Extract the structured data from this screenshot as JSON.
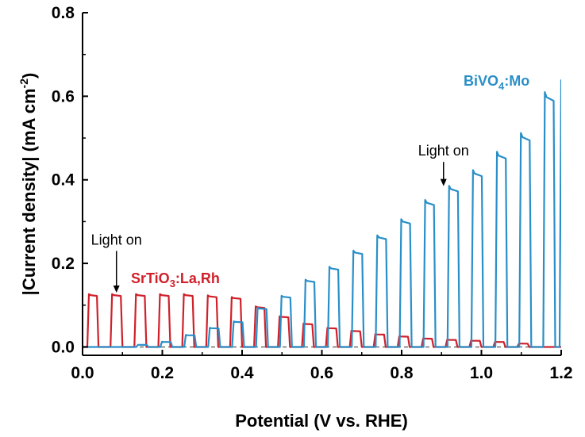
{
  "chart_data": {
    "type": "line",
    "title": "",
    "xlabel": "Potential (V vs. RHE)",
    "ylabel": "|Current density| (mA cm-2)",
    "ylabel_parts": {
      "main": "|Current density| (mA cm",
      "sup": "-2",
      "close": ")"
    },
    "xlim": [
      0.0,
      1.2
    ],
    "ylim": [
      -0.02,
      0.8
    ],
    "xticks": [
      "0.0",
      "0.2",
      "0.4",
      "0.6",
      "0.8",
      "1.0",
      "1.2"
    ],
    "yticks": [
      "0.0",
      "0.2",
      "0.4",
      "0.6",
      "0.8"
    ],
    "grid": false,
    "legend": "none",
    "colors": {
      "BiVO4:Mo": "#2a8fc8",
      "SrTiO3:La,Rh": "#d0202a",
      "axis": "#000000",
      "baseline": "#555555"
    },
    "series": [
      {
        "name": "SrTiO3:La,Rh",
        "label_parts": {
          "a": "SrTiO",
          "sub": "3",
          "b": ":La,Rh"
        },
        "dark_current": 0.0,
        "light_periods": [
          [
            0.012,
            0.04
          ],
          [
            0.07,
            0.1
          ],
          [
            0.13,
            0.16
          ],
          [
            0.19,
            0.22
          ],
          [
            0.25,
            0.28
          ],
          [
            0.31,
            0.34
          ],
          [
            0.37,
            0.4
          ],
          [
            0.43,
            0.46
          ],
          [
            0.49,
            0.52
          ],
          [
            0.55,
            0.58
          ],
          [
            0.61,
            0.64
          ],
          [
            0.67,
            0.7
          ],
          [
            0.73,
            0.76
          ],
          [
            0.79,
            0.82
          ],
          [
            0.85,
            0.88
          ],
          [
            0.91,
            0.94
          ],
          [
            0.97,
            1.0
          ],
          [
            1.03,
            1.06
          ],
          [
            1.09,
            1.12
          ]
        ],
        "light_values": [
          0.124,
          0.124,
          0.124,
          0.124,
          0.124,
          0.121,
          0.117,
          0.095,
          0.072,
          0.055,
          0.045,
          0.038,
          0.03,
          0.025,
          0.02,
          0.017,
          0.015,
          0.012,
          0.008
        ]
      },
      {
        "name": "BiVO4:Mo",
        "label_parts": {
          "a": "BiVO",
          "sub": "4",
          "b": ":Mo"
        },
        "dark_current": 0.0,
        "light_periods": [
          [
            0.135,
            0.165
          ],
          [
            0.195,
            0.225
          ],
          [
            0.255,
            0.285
          ],
          [
            0.315,
            0.345
          ],
          [
            0.375,
            0.405
          ],
          [
            0.435,
            0.465
          ],
          [
            0.495,
            0.525
          ],
          [
            0.555,
            0.585
          ],
          [
            0.615,
            0.645
          ],
          [
            0.675,
            0.705
          ],
          [
            0.735,
            0.765
          ],
          [
            0.795,
            0.825
          ],
          [
            0.855,
            0.885
          ],
          [
            0.915,
            0.945
          ],
          [
            0.975,
            1.005
          ],
          [
            1.035,
            1.065
          ],
          [
            1.095,
            1.125
          ],
          [
            1.155,
            1.185
          ]
        ],
        "light_values": [
          0.005,
          0.012,
          0.028,
          0.045,
          0.06,
          0.092,
          0.12,
          0.158,
          0.188,
          0.226,
          0.262,
          0.3,
          0.345,
          0.378,
          0.415,
          0.458,
          0.502,
          0.598
        ],
        "final_rise_value": 0.64
      }
    ],
    "annotations": [
      {
        "text": "Light on",
        "x": 0.085,
        "y": 0.245,
        "arrow_to": [
          0.085,
          0.13
        ]
      },
      {
        "text": "Light on",
        "x": 0.905,
        "y": 0.458,
        "arrow_to": [
          0.905,
          0.385
        ]
      }
    ]
  }
}
